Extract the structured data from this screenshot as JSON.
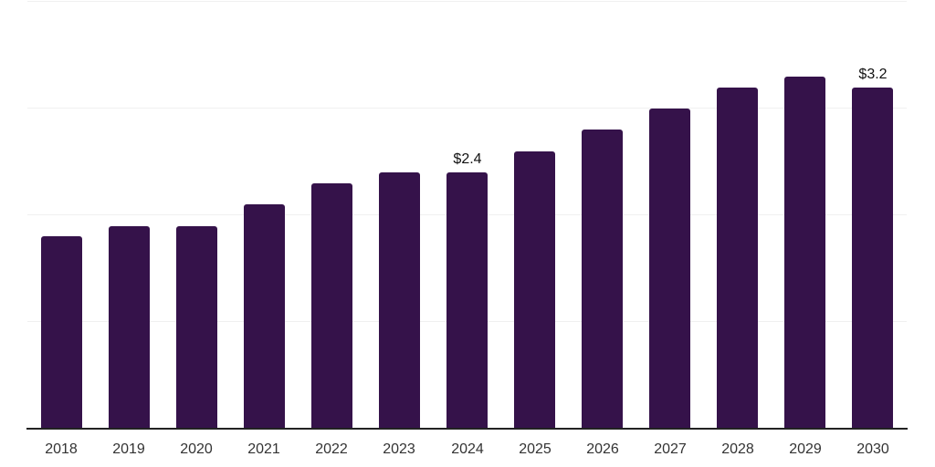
{
  "chart_data": {
    "type": "bar",
    "categories": [
      "2018",
      "2019",
      "2020",
      "2021",
      "2022",
      "2023",
      "2024",
      "2025",
      "2026",
      "2027",
      "2028",
      "2029",
      "2030"
    ],
    "values": [
      1.8,
      1.9,
      1.9,
      2.1,
      2.3,
      2.4,
      2.4,
      2.6,
      2.8,
      3.0,
      3.2,
      3.3,
      3.2
    ],
    "annotations": [
      {
        "category": "2024",
        "text": "$2.4"
      },
      {
        "category": "2030",
        "text": "$3.2"
      }
    ],
    "title": "",
    "xlabel": "",
    "ylabel": "",
    "ylim": [
      0,
      4
    ],
    "gridline_values": [
      1,
      2,
      3,
      4
    ],
    "grid": "on",
    "legend": "none",
    "colors": {
      "bar": "#35124A",
      "gridline": "#f0f0f0",
      "axis_line": "#222222",
      "tick_label": "#333333",
      "annotation_text": "#111111",
      "background": "#ffffff"
    }
  }
}
